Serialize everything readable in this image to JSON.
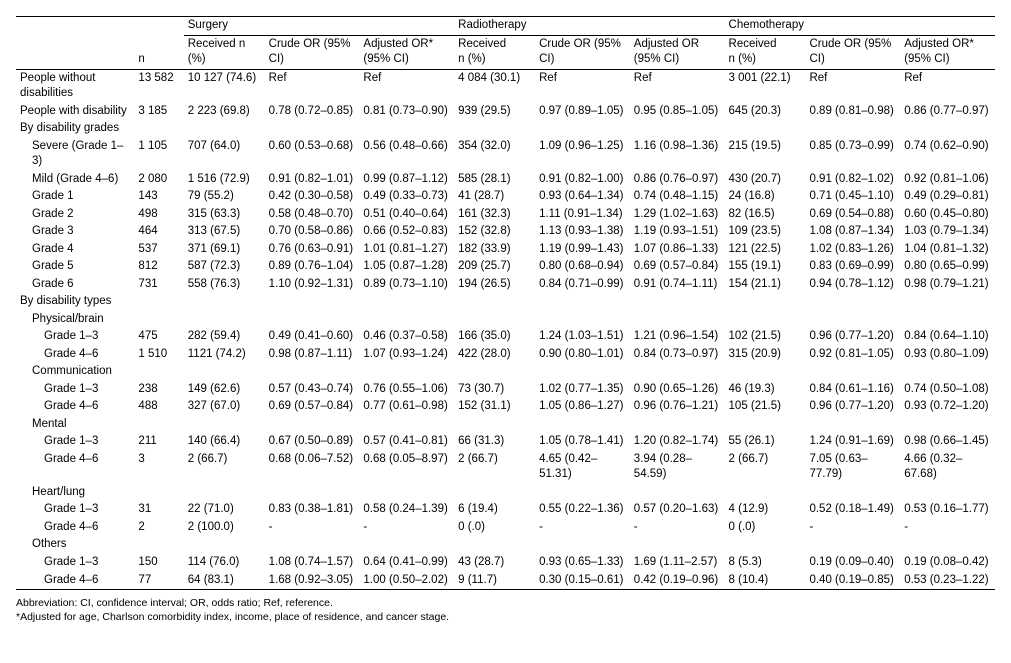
{
  "columnGroups": [
    "Surgery",
    "Radiotherapy",
    "Chemotherapy"
  ],
  "subHeaders": {
    "n": "n",
    "received": "Received n (%)",
    "received_split": [
      "Received",
      "n (%)"
    ],
    "crude": "Crude OR (95% CI)",
    "adj_star": "Adjusted OR* (95% CI)",
    "adj": "Adjusted OR (95% CI)"
  },
  "rows": [
    {
      "label": "People without disabilities",
      "indent": 0,
      "n": "13 582",
      "s_r": "10 127 (74.6)",
      "s_c": "Ref",
      "s_a": "Ref",
      "r_r": "4 084 (30.1)",
      "r_c": "Ref",
      "r_a": "Ref",
      "c_r": "3 001 (22.1)",
      "c_c": "Ref",
      "c_a": "Ref"
    },
    {
      "label": "People with disability",
      "indent": 0,
      "n": "3 185",
      "s_r": "2 223 (69.8)",
      "s_c": "0.78 (0.72–0.85)",
      "s_a": "0.81 (0.73–0.90)",
      "r_r": "939 (29.5)",
      "r_c": "0.97 (0.89–1.05)",
      "r_a": "0.95 (0.85–1.05)",
      "c_r": "645 (20.3)",
      "c_c": "0.89 (0.81–0.98)",
      "c_a": "0.86 (0.77–0.97)"
    },
    {
      "label": "By disability grades",
      "indent": 0,
      "section": true
    },
    {
      "label": "Severe (Grade 1–3)",
      "indent": 1,
      "n": "1 105",
      "s_r": "707 (64.0)",
      "s_c": "0.60 (0.53–0.68)",
      "s_a": "0.56 (0.48–0.66)",
      "r_r": "354 (32.0)",
      "r_c": "1.09 (0.96–1.25)",
      "r_a": "1.16 (0.98–1.36)",
      "c_r": "215 (19.5)",
      "c_c": "0.85 (0.73–0.99)",
      "c_a": "0.74 (0.62–0.90)"
    },
    {
      "label": "Mild (Grade 4–6)",
      "indent": 1,
      "n": "2 080",
      "s_r": "1 516 (72.9)",
      "s_c": "0.91 (0.82–1.01)",
      "s_a": "0.99 (0.87–1.12)",
      "r_r": "585 (28.1)",
      "r_c": "0.91 (0.82–1.00)",
      "r_a": "0.86 (0.76–0.97)",
      "c_r": "430 (20.7)",
      "c_c": "0.91 (0.82–1.02)",
      "c_a": "0.92 (0.81–1.06)"
    },
    {
      "label": "Grade 1",
      "indent": 1,
      "n": "143",
      "s_r": "79 (55.2)",
      "s_c": "0.42 (0.30–0.58)",
      "s_a": "0.49 (0.33–0.73)",
      "r_r": "41 (28.7)",
      "r_c": "0.93 (0.64–1.34)",
      "r_a": "0.74 (0.48–1.15)",
      "c_r": "24 (16.8)",
      "c_c": "0.71 (0.45–1.10)",
      "c_a": "0.49 (0.29–0.81)"
    },
    {
      "label": "Grade 2",
      "indent": 1,
      "n": "498",
      "s_r": "315 (63.3)",
      "s_c": "0.58 (0.48–0.70)",
      "s_a": "0.51 (0.40–0.64)",
      "r_r": "161 (32.3)",
      "r_c": "1.11 (0.91–1.34)",
      "r_a": "1.29 (1.02–1.63)",
      "c_r": "82 (16.5)",
      "c_c": "0.69 (0.54–0.88)",
      "c_a": "0.60 (0.45–0.80)"
    },
    {
      "label": "Grade 3",
      "indent": 1,
      "n": "464",
      "s_r": "313 (67.5)",
      "s_c": "0.70 (0.58–0.86)",
      "s_a": "0.66 (0.52–0.83)",
      "r_r": "152 (32.8)",
      "r_c": "1.13 (0.93–1.38)",
      "r_a": "1.19 (0.93–1.51)",
      "c_r": "109 (23.5)",
      "c_c": "1.08 (0.87–1.34)",
      "c_a": "1.03 (0.79–1.34)"
    },
    {
      "label": "Grade 4",
      "indent": 1,
      "n": "537",
      "s_r": "371 (69.1)",
      "s_c": "0.76 (0.63–0.91)",
      "s_a": "1.01 (0.81–1.27)",
      "r_r": "182 (33.9)",
      "r_c": "1.19 (0.99–1.43)",
      "r_a": "1.07 (0.86–1.33)",
      "c_r": "121 (22.5)",
      "c_c": "1.02 (0.83–1.26)",
      "c_a": "1.04 (0.81–1.32)"
    },
    {
      "label": "Grade 5",
      "indent": 1,
      "n": "812",
      "s_r": "587 (72.3)",
      "s_c": "0.89 (0.76–1.04)",
      "s_a": "1.05 (0.87–1.28)",
      "r_r": "209 (25.7)",
      "r_c": "0.80 (0.68–0.94)",
      "r_a": "0.69 (0.57–0.84)",
      "c_r": "155 (19.1)",
      "c_c": "0.83 (0.69–0.99)",
      "c_a": "0.80 (0.65–0.99)"
    },
    {
      "label": "Grade 6",
      "indent": 1,
      "n": "731",
      "s_r": "558 (76.3)",
      "s_c": "1.10 (0.92–1.31)",
      "s_a": "0.89 (0.73–1.10)",
      "r_r": "194 (26.5)",
      "r_c": "0.84 (0.71–0.99)",
      "r_a": "0.91 (0.74–1.11)",
      "c_r": "154 (21.1)",
      "c_c": "0.94 (0.78–1.12)",
      "c_a": "0.98 (0.79–1.21)"
    },
    {
      "label": "By disability types",
      "indent": 0,
      "section": true
    },
    {
      "label": "Physical/brain",
      "indent": 1,
      "section": true
    },
    {
      "label": "Grade 1–3",
      "indent": 2,
      "n": "475",
      "s_r": "282 (59.4)",
      "s_c": "0.49 (0.41–0.60)",
      "s_a": "0.46 (0.37–0.58)",
      "r_r": "166 (35.0)",
      "r_c": "1.24 (1.03–1.51)",
      "r_a": "1.21 (0.96–1.54)",
      "c_r": "102 (21.5)",
      "c_c": "0.96 (0.77–1.20)",
      "c_a": "0.84 (0.64–1.10)"
    },
    {
      "label": "Grade 4–6",
      "indent": 2,
      "n": "1 510",
      "s_r": "1121 (74.2)",
      "s_c": "0.98 (0.87–1.11)",
      "s_a": "1.07 (0.93–1.24)",
      "r_r": "422 (28.0)",
      "r_c": "0.90 (0.80–1.01)",
      "r_a": "0.84 (0.73–0.97)",
      "c_r": "315 (20.9)",
      "c_c": "0.92 (0.81–1.05)",
      "c_a": "0.93 (0.80–1.09)"
    },
    {
      "label": "Communication",
      "indent": 1,
      "section": true
    },
    {
      "label": "Grade 1–3",
      "indent": 2,
      "n": "238",
      "s_r": "149 (62.6)",
      "s_c": "0.57 (0.43–0.74)",
      "s_a": "0.76 (0.55–1.06)",
      "r_r": "73 (30.7)",
      "r_c": "1.02 (0.77–1.35)",
      "r_a": "0.90 (0.65–1.26)",
      "c_r": "46 (19.3)",
      "c_c": "0.84 (0.61–1.16)",
      "c_a": "0.74 (0.50–1.08)"
    },
    {
      "label": "Grade 4–6",
      "indent": 2,
      "n": "488",
      "s_r": "327 (67.0)",
      "s_c": "0.69 (0.57–0.84)",
      "s_a": "0.77 (0.61–0.98)",
      "r_r": "152 (31.1)",
      "r_c": "1.05 (0.86–1.27)",
      "r_a": "0.96 (0.76–1.21)",
      "c_r": "105 (21.5)",
      "c_c": "0.96 (0.77–1.20)",
      "c_a": "0.93 (0.72–1.20)"
    },
    {
      "label": "Mental",
      "indent": 1,
      "section": true
    },
    {
      "label": "Grade 1–3",
      "indent": 2,
      "n": "211",
      "s_r": "140 (66.4)",
      "s_c": "0.67 (0.50–0.89)",
      "s_a": "0.57 (0.41–0.81)",
      "r_r": "66 (31.3)",
      "r_c": "1.05 (0.78–1.41)",
      "r_a": "1.20 (0.82–1.74)",
      "c_r": "55 (26.1)",
      "c_c": "1.24 (0.91–1.69)",
      "c_a": "0.98 (0.66–1.45)"
    },
    {
      "label": "Grade 4–6",
      "indent": 2,
      "n": "3",
      "s_r": "2 (66.7)",
      "s_c": "0.68 (0.06–7.52)",
      "s_a": "0.68 (0.05–8.97)",
      "r_r": "2 (66.7)",
      "r_c": "4.65 (0.42–51.31)",
      "r_a": "3.94 (0.28–54.59)",
      "c_r": "2 (66.7)",
      "c_c": "7.05 (0.63–77.79)",
      "c_a": "4.66 (0.32–67.68)"
    },
    {
      "label": "Heart/lung",
      "indent": 1,
      "section": true
    },
    {
      "label": "Grade 1–3",
      "indent": 2,
      "n": "31",
      "s_r": "22 (71.0)",
      "s_c": "0.83 (0.38–1.81)",
      "s_a": "0.58 (0.24–1.39)",
      "r_r": "6 (19.4)",
      "r_c": "0.55 (0.22–1.36)",
      "r_a": "0.57 (0.20–1.63)",
      "c_r": "4 (12.9)",
      "c_c": "0.52 (0.18–1.49)",
      "c_a": "0.53 (0.16–1.77)"
    },
    {
      "label": "Grade 4–6",
      "indent": 2,
      "n": "2",
      "s_r": "2 (100.0)",
      "s_c": "-",
      "s_a": "-",
      "r_r": "0 (.0)",
      "r_c": "-",
      "r_a": "-",
      "c_r": "0 (.0)",
      "c_c": "-",
      "c_a": "-"
    },
    {
      "label": "Others",
      "indent": 1,
      "section": true
    },
    {
      "label": "Grade 1–3",
      "indent": 2,
      "n": "150",
      "s_r": "114 (76.0)",
      "s_c": "1.08 (0.74–1.57)",
      "s_a": "0.64 (0.41–0.99)",
      "r_r": "43 (28.7)",
      "r_c": "0.93 (0.65–1.33)",
      "r_a": "1.69 (1.11–2.57)",
      "c_r": "8 (5.3)",
      "c_c": "0.19 (0.09–0.40)",
      "c_a": "0.19 (0.08–0.42)"
    },
    {
      "label": "Grade 4–6",
      "indent": 2,
      "n": "77",
      "s_r": "64 (83.1)",
      "s_c": "1.68 (0.92–3.05)",
      "s_a": "1.00 (0.50–2.02)",
      "r_r": "9 (11.7)",
      "r_c": "0.30 (0.15–0.61)",
      "r_a": "0.42 (0.19–0.96)",
      "c_r": "8 (10.4)",
      "c_c": "0.40 (0.19–0.85)",
      "c_a": "0.53 (0.23–1.22)"
    }
  ],
  "footnotes": [
    "Abbreviation: CI, confidence interval; OR, odds ratio; Ref, reference.",
    "*Adjusted for age, Charlson comorbidity index, income, place of residence, and cancer stage."
  ]
}
